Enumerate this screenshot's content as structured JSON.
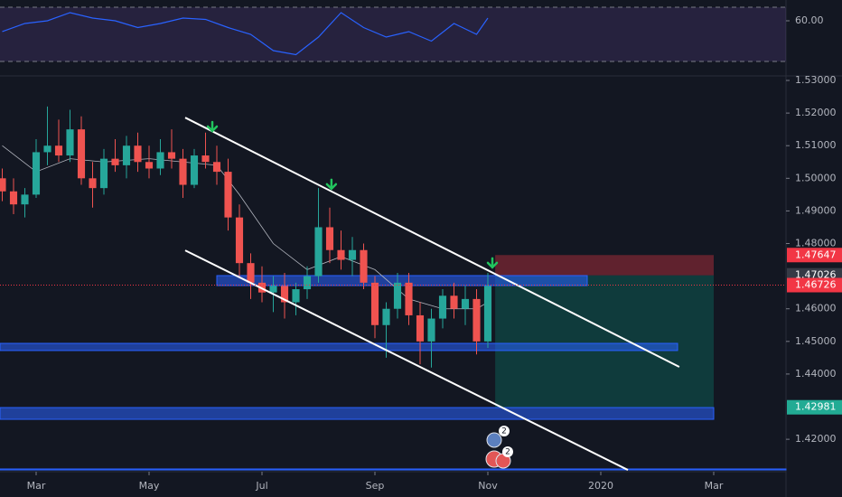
{
  "chart_data": {
    "type": "candlestick",
    "xlim": [
      -0.64,
      13.28
    ],
    "xticks": [
      {
        "value": 0,
        "label": "Mar"
      },
      {
        "value": 2,
        "label": "May"
      },
      {
        "value": 4,
        "label": "Jul"
      },
      {
        "value": 6,
        "label": "Sep"
      },
      {
        "value": 8,
        "label": "Nov"
      },
      {
        "value": 10,
        "label": "2020"
      },
      {
        "value": 12,
        "label": "Mar"
      }
    ],
    "ylim": [
      1.41006,
      1.53139
    ],
    "yticks": [
      {
        "value": 1.53,
        "label": "1.53000"
      },
      {
        "value": 1.52,
        "label": "1.52000"
      },
      {
        "value": 1.51,
        "label": "1.51000"
      },
      {
        "value": 1.5,
        "label": "1.50000"
      },
      {
        "value": 1.49,
        "label": "1.49000"
      },
      {
        "value": 1.48,
        "label": "1.48000"
      },
      {
        "value": 1.46,
        "label": "1.46000"
      },
      {
        "value": 1.45,
        "label": "1.45000"
      },
      {
        "value": 1.44,
        "label": "1.44000"
      },
      {
        "value": 1.42,
        "label": "1.42000"
      }
    ],
    "up_color": "#26a69a",
    "down_color": "#ef5350",
    "x": [
      -0.6,
      -0.4,
      -0.2,
      0,
      0.2,
      0.4,
      0.6,
      0.8,
      1,
      1.2,
      1.4,
      1.6,
      1.8,
      2,
      2.2,
      2.4,
      2.6,
      2.8,
      3,
      3.2,
      3.4,
      3.6,
      3.8,
      4,
      4.2,
      4.4,
      4.6,
      4.8,
      5,
      5.2,
      5.4,
      5.6,
      5.8,
      6,
      6.2,
      6.4,
      6.6,
      6.8,
      7,
      7.2,
      7.4,
      7.6,
      7.8,
      8
    ],
    "open": [
      1.5,
      1.496,
      1.492,
      1.495,
      1.508,
      1.51,
      1.507,
      1.515,
      1.5,
      1.497,
      1.506,
      1.504,
      1.51,
      1.505,
      1.503,
      1.508,
      1.506,
      1.498,
      1.507,
      1.505,
      1.502,
      1.488,
      1.474,
      1.468,
      1.465,
      1.467,
      1.462,
      1.466,
      1.47,
      1.485,
      1.478,
      1.475,
      1.478,
      1.468,
      1.455,
      1.46,
      1.468,
      1.458,
      1.45,
      1.457,
      1.464,
      1.46,
      1.463,
      1.45
    ],
    "high": [
      1.503,
      1.5,
      1.497,
      1.512,
      1.522,
      1.518,
      1.521,
      1.519,
      1.505,
      1.509,
      1.512,
      1.513,
      1.514,
      1.51,
      1.512,
      1.515,
      1.509,
      1.509,
      1.514,
      1.51,
      1.506,
      1.492,
      1.477,
      1.473,
      1.47,
      1.471,
      1.468,
      1.473,
      1.497,
      1.491,
      1.484,
      1.482,
      1.48,
      1.47,
      1.462,
      1.471,
      1.471,
      1.462,
      1.46,
      1.466,
      1.468,
      1.467,
      1.466,
      1.471
    ],
    "low": [
      1.493,
      1.489,
      1.488,
      1.494,
      1.504,
      1.505,
      1.505,
      1.498,
      1.491,
      1.495,
      1.502,
      1.5,
      1.502,
      1.5,
      1.501,
      1.503,
      1.494,
      1.497,
      1.503,
      1.498,
      1.484,
      1.47,
      1.463,
      1.462,
      1.459,
      1.457,
      1.458,
      1.463,
      1.468,
      1.474,
      1.472,
      1.47,
      1.466,
      1.451,
      1.445,
      1.457,
      1.455,
      1.443,
      1.442,
      1.454,
      1.457,
      1.455,
      1.446,
      1.448
    ],
    "close": [
      1.496,
      1.492,
      1.495,
      1.508,
      1.51,
      1.507,
      1.515,
      1.5,
      1.497,
      1.506,
      1.504,
      1.51,
      1.505,
      1.503,
      1.508,
      1.506,
      1.498,
      1.507,
      1.505,
      1.502,
      1.488,
      1.474,
      1.468,
      1.465,
      1.467,
      1.462,
      1.466,
      1.47,
      1.485,
      1.478,
      1.475,
      1.478,
      1.468,
      1.455,
      1.46,
      1.468,
      1.458,
      1.45,
      1.457,
      1.464,
      1.46,
      1.463,
      1.45,
      1.467
    ],
    "ma": {
      "color": "#b2b5be",
      "x": [
        -0.6,
        0,
        0.6,
        1.2,
        2,
        2.6,
        3.2,
        3.6,
        4.2,
        4.8,
        5.4,
        6,
        6.6,
        7.2,
        7.8,
        8
      ],
      "values": [
        1.51,
        1.502,
        1.506,
        1.505,
        1.506,
        1.505,
        1.504,
        1.495,
        1.48,
        1.472,
        1.476,
        1.472,
        1.463,
        1.46,
        1.46,
        1.462
      ]
    },
    "zones": [
      {
        "x0": 3.2,
        "x1": 9.76,
        "y0": 1.46712,
        "y1": 1.47017
      },
      {
        "x0": -0.64,
        "x1": 11.36,
        "y0": 1.4472,
        "y1": 1.4494
      },
      {
        "x0": -0.64,
        "x1": 12,
        "y0": 1.42612,
        "y1": 1.42972
      },
      {
        "x0": -0.64,
        "x1": 13.28,
        "y0": 1.4106,
        "y1": 1.4109
      }
    ],
    "trend_lines": [
      {
        "x": [
          2.64,
          11.39
        ],
        "y": [
          1.5186,
          1.4422
        ]
      },
      {
        "x": [
          2.64,
          10.48
        ],
        "y": [
          1.4779,
          1.4106
        ]
      }
    ],
    "position": {
      "x0": 8.13,
      "x1": 12,
      "entry": 1.47026,
      "stop": 1.47647,
      "target": 1.42981
    },
    "current_price": 1.46726,
    "price_labels": [
      {
        "value": 1.47647,
        "color": "#f23645"
      },
      {
        "value": 1.47026,
        "color": "#363a45"
      },
      {
        "value": 1.46726,
        "color": "#f23645"
      },
      {
        "value": 1.42981,
        "color": "#22ab94"
      }
    ],
    "markers": [
      {
        "x": 3.12,
        "y": 1.5145
      },
      {
        "x": 5.23,
        "y": 1.4968
      },
      {
        "x": 8.08,
        "y": 1.4727
      }
    ],
    "event_badges": [
      "2",
      "2"
    ],
    "rsi": {
      "color": "#2962ff",
      "ylim": [
        20,
        75.33
      ],
      "yticks": [
        {
          "value": 60,
          "label": "60.00"
        }
      ],
      "bands": [
        70,
        30
      ],
      "x": [
        -0.6,
        -0.2,
        0.2,
        0.6,
        1,
        1.4,
        1.8,
        2.2,
        2.6,
        3,
        3.4,
        3.8,
        4.2,
        4.6,
        5,
        5.4,
        5.8,
        6.2,
        6.6,
        7,
        7.4,
        7.8,
        8
      ],
      "values": [
        52,
        58,
        60,
        66,
        62,
        60,
        55,
        58,
        62,
        61,
        55,
        50,
        38,
        35,
        48,
        66,
        55,
        48,
        52,
        45,
        58,
        50,
        62
      ]
    }
  }
}
